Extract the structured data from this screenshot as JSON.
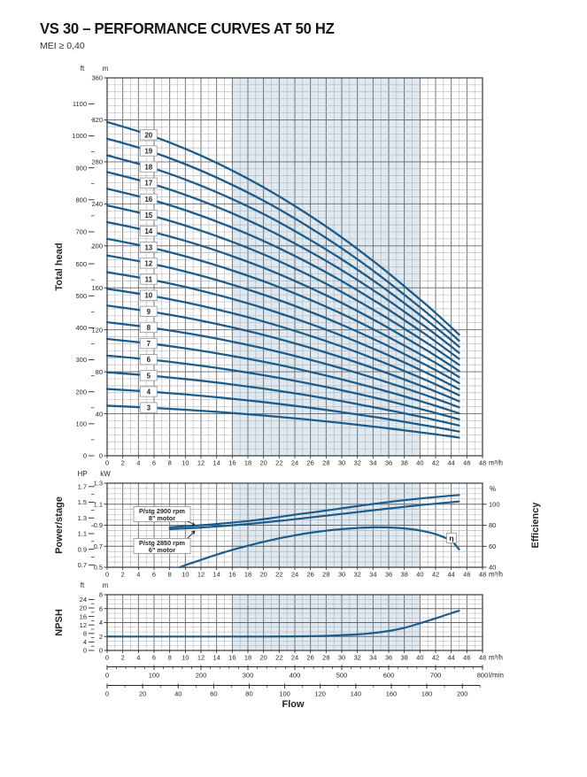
{
  "title": "VS 30 – PERFORMANCE CURVES AT 50 HZ",
  "subtitle": "MEI ≥ 0,40",
  "flow_label": "Flow",
  "colors": {
    "curve": "#1b5c8c",
    "band": "#dfe9ef",
    "grid_minor": "#a9aeb2",
    "grid_major": "#62686d",
    "border": "#41464b",
    "text": "#26262c",
    "box_border": "#9aa0a5"
  },
  "chart_data": [
    {
      "id": "total_head",
      "type": "line",
      "ylabel": "Total head",
      "x_axis": {
        "unit": "m³/h",
        "min": 0,
        "max": 48,
        "label_step": 2,
        "minor_div": 2
      },
      "y_axes": {
        "primary": {
          "unit": "m",
          "min": 0,
          "max": 360,
          "tick_labels": [
            0,
            40,
            80,
            120,
            160,
            200,
            240,
            280,
            320,
            360
          ],
          "minor_div": 6
        },
        "secondary": {
          "unit": "ft",
          "ticks": [
            0,
            100,
            200,
            300,
            400,
            500,
            600,
            700,
            800,
            900,
            1000,
            1100
          ],
          "factor_to_primary": 0.3048
        }
      },
      "duty_band_x": [
        16,
        40
      ],
      "stages": [
        3,
        4,
        5,
        6,
        7,
        8,
        9,
        10,
        11,
        12,
        13,
        14,
        15,
        16,
        17,
        18,
        19,
        20
      ],
      "flow_points_m3h": [
        0,
        5,
        10,
        15,
        20,
        25,
        30,
        35,
        40,
        42,
        44,
        45
      ],
      "head_per_stage_m": [
        15.9,
        15.33,
        14.62,
        13.77,
        12.79,
        11.66,
        10.4,
        8.99,
        7.45,
        6.8,
        6.12,
        5.77
      ],
      "stage_label_flow": 5.3
    },
    {
      "id": "power_stage",
      "type": "line",
      "ylabel": "Power/stage",
      "ylabel_right": "Efficiency",
      "x_axis": {
        "unit": "m³/h",
        "min": 0,
        "max": 48,
        "label_step": 2,
        "minor_div": 2
      },
      "y_axes": {
        "primary": {
          "unit": "kW",
          "min": 0.5,
          "max": 1.3,
          "tick_labels": [
            0.5,
            0.7,
            0.9,
            1.1,
            1.3
          ],
          "minor_div": 4
        },
        "secondary": {
          "unit": "HP",
          "ticks": [
            0.7,
            0.9,
            1.1,
            1.3,
            1.5,
            1.7
          ],
          "factor_to_primary": 0.7457
        },
        "right_pct": {
          "unit": "%",
          "ticks": [
            40,
            60,
            80,
            100
          ],
          "kw_at_40pct": 0.5,
          "kw_per_10pct": 0.1
        }
      },
      "duty_band_x": [
        16,
        40
      ],
      "series": [
        {
          "name": "p2900",
          "label_line1": "P/stg 2900 rpm",
          "label_line2": "8\" motor",
          "x": [
            8,
            10,
            12,
            14,
            16,
            18,
            20,
            22,
            24,
            26,
            28,
            30,
            32,
            34,
            36,
            38,
            40,
            42,
            44,
            45
          ],
          "kw": [
            0.88,
            0.89,
            0.9,
            0.912,
            0.925,
            0.94,
            0.958,
            0.978,
            1.0,
            1.02,
            1.04,
            1.061,
            1.082,
            1.102,
            1.121,
            1.138,
            1.154,
            1.168,
            1.181,
            1.187
          ]
        },
        {
          "name": "p2850",
          "label_line1": "P/stg 2850 rpm",
          "label_line2": "6\" motor",
          "x": [
            8,
            10,
            12,
            14,
            16,
            18,
            20,
            22,
            24,
            26,
            28,
            30,
            32,
            34,
            36,
            38,
            40,
            42,
            44,
            45
          ],
          "kw": [
            0.862,
            0.87,
            0.878,
            0.888,
            0.899,
            0.912,
            0.926,
            0.941,
            0.957,
            0.974,
            0.991,
            1.008,
            1.025,
            1.042,
            1.059,
            1.075,
            1.091,
            1.105,
            1.119,
            1.126
          ]
        },
        {
          "name": "efficiency",
          "label": "η",
          "x": [
            9.3,
            10,
            12,
            14,
            16,
            18,
            20,
            22,
            24,
            26,
            28,
            30,
            32,
            34,
            36,
            38,
            40,
            42,
            44,
            45
          ],
          "pct": [
            40,
            42,
            47,
            52,
            56.5,
            60.5,
            64.2,
            67.5,
            70.4,
            72.8,
            74.8,
            76.3,
            77.4,
            78,
            77.9,
            77,
            75,
            71.5,
            65,
            57
          ]
        }
      ]
    },
    {
      "id": "npsh",
      "type": "line",
      "ylabel": "NPSH",
      "x_axis": {
        "unit": "m³/h",
        "min": 0,
        "max": 48,
        "label_step": 2,
        "minor_div": 2
      },
      "y_axes": {
        "primary": {
          "unit": "m",
          "min": 0,
          "max": 8,
          "tick_labels": [
            0,
            2,
            4,
            6,
            8
          ],
          "minor_div": 3
        },
        "secondary": {
          "unit": "ft",
          "ticks": [
            0,
            4,
            8,
            12,
            16,
            20,
            24
          ],
          "factor_to_primary": 0.3048
        }
      },
      "duty_band_x": [
        16,
        40
      ],
      "series": [
        {
          "name": "npsh",
          "x": [
            0,
            4,
            8,
            12,
            16,
            20,
            24,
            26,
            28,
            30,
            32,
            34,
            36,
            38,
            40,
            42,
            44,
            45
          ],
          "m": [
            2,
            2,
            2,
            2,
            2,
            2,
            2.02,
            2.05,
            2.1,
            2.2,
            2.3,
            2.5,
            2.8,
            3.25,
            3.9,
            4.6,
            5.35,
            5.7
          ]
        }
      ]
    }
  ],
  "flow_scales": [
    {
      "unit": "l/min",
      "labels": [
        0,
        100,
        200,
        300,
        400,
        500,
        600,
        700,
        800
      ],
      "minor_step": 20,
      "max": 800,
      "m3h_per_unit": 0.06
    },
    {
      "unit": "",
      "labels": [
        0,
        20,
        40,
        60,
        80,
        100,
        120,
        140,
        160,
        180,
        200
      ],
      "minor_step": 10,
      "max": 210,
      "m3h_per_unit": 0.2271
    }
  ]
}
